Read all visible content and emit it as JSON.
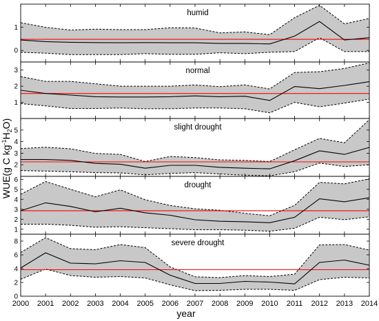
{
  "chart_data": {
    "type": "line",
    "xlabel": "year",
    "ylabel": "WUE(g C kg-1H2O)",
    "ylabel_parts": {
      "main": "WUE(g C kg",
      "sup": "-1",
      "mid": "H",
      "sub": "2",
      "end": "O)"
    },
    "x": [
      2000,
      2001,
      2002,
      2003,
      2004,
      2005,
      2006,
      2007,
      2008,
      2009,
      2010,
      2011,
      2012,
      2013,
      2014
    ],
    "x_tick_labels": [
      "2000",
      "2001",
      "2002",
      "2003",
      "2004",
      "2005",
      "2006",
      "2007",
      "2008",
      "2009",
      "2010",
      "2011",
      "2012",
      "2013",
      "2014"
    ],
    "grid": false,
    "panels": [
      {
        "title": "humid",
        "ylim": [
          -0.5,
          2.0
        ],
        "yticks": [
          0,
          1
        ],
        "mean": [
          0.45,
          0.38,
          0.35,
          0.34,
          0.33,
          0.34,
          0.33,
          0.33,
          0.3,
          0.3,
          0.28,
          0.62,
          1.25,
          0.45,
          0.55
        ],
        "upper": [
          1.2,
          1.0,
          0.88,
          0.92,
          0.9,
          0.9,
          0.98,
          0.97,
          0.76,
          0.8,
          0.68,
          1.42,
          1.95,
          1.15,
          1.38
        ],
        "lower": [
          -0.08,
          -0.12,
          -0.18,
          -0.18,
          -0.18,
          -0.14,
          -0.17,
          -0.17,
          -0.1,
          -0.14,
          -0.08,
          -0.05,
          0.55,
          -0.05,
          -0.05
        ],
        "reference": 0.48
      },
      {
        "title": "normal",
        "ylim": [
          0.0,
          3.5
        ],
        "yticks": [
          1,
          2,
          3
        ],
        "mean": [
          1.75,
          1.55,
          1.45,
          1.35,
          1.33,
          1.33,
          1.35,
          1.4,
          1.35,
          1.38,
          1.12,
          1.98,
          1.85,
          2.05,
          2.28
        ],
        "upper": [
          2.6,
          2.3,
          2.3,
          2.15,
          2.0,
          2.0,
          2.0,
          2.08,
          1.97,
          2.08,
          1.83,
          2.85,
          2.9,
          3.1,
          3.45
        ],
        "lower": [
          0.92,
          0.78,
          0.62,
          0.62,
          0.65,
          0.6,
          0.6,
          0.65,
          0.65,
          0.6,
          0.35,
          1.0,
          0.72,
          0.95,
          1.2
        ],
        "reference": 1.55
      },
      {
        "title": "slight drought",
        "ylim": [
          1.0,
          6.0
        ],
        "yticks": [
          2,
          3,
          4,
          5
        ],
        "mean": [
          2.45,
          2.45,
          2.38,
          2.12,
          2.05,
          1.7,
          1.95,
          1.95,
          1.78,
          1.7,
          1.65,
          2.35,
          3.2,
          2.9,
          3.5
        ],
        "upper": [
          3.4,
          3.52,
          3.38,
          2.98,
          2.9,
          2.28,
          2.72,
          2.62,
          2.42,
          2.38,
          2.28,
          3.3,
          4.28,
          3.9,
          5.9
        ],
        "lower": [
          1.5,
          1.45,
          1.4,
          1.32,
          1.3,
          1.13,
          1.25,
          1.32,
          1.2,
          1.1,
          1.05,
          1.4,
          2.15,
          1.85,
          2.0
        ],
        "reference": 2.25
      },
      {
        "title": "drought",
        "ylim": [
          0.5,
          6.3
        ],
        "yticks": [
          1,
          2,
          3,
          4,
          5,
          6
        ],
        "mean": [
          2.85,
          3.65,
          3.28,
          2.75,
          3.1,
          2.65,
          2.4,
          1.95,
          1.8,
          1.75,
          1.65,
          2.2,
          4.05,
          3.75,
          4.15
        ],
        "upper": [
          4.5,
          5.78,
          5.0,
          4.25,
          4.95,
          3.95,
          3.38,
          3.05,
          2.9,
          2.6,
          2.35,
          3.4,
          5.7,
          5.55,
          6.05
        ],
        "lower": [
          1.5,
          1.5,
          1.4,
          1.2,
          1.25,
          1.15,
          1.05,
          0.95,
          0.95,
          0.9,
          0.8,
          1.1,
          2.2,
          1.95,
          2.25
        ],
        "reference": 2.85
      },
      {
        "title": "severe drought",
        "ylim": [
          0.0,
          9.0
        ],
        "yticks": [
          0,
          2,
          4,
          6,
          8
        ],
        "mean": [
          4.1,
          6.3,
          4.8,
          4.7,
          5.15,
          4.9,
          3.05,
          1.85,
          1.85,
          2.15,
          2.05,
          1.8,
          4.9,
          5.25,
          4.5
        ],
        "upper": [
          6.35,
          8.5,
          6.9,
          6.75,
          7.5,
          7.05,
          4.25,
          2.82,
          2.7,
          3.0,
          2.85,
          3.2,
          7.45,
          7.5,
          6.7
        ],
        "lower": [
          2.45,
          3.95,
          3.0,
          2.75,
          2.85,
          2.65,
          1.65,
          0.8,
          0.85,
          1.0,
          1.0,
          0.85,
          2.4,
          2.75,
          2.65
        ],
        "reference": 3.85
      }
    ],
    "colors": {
      "band_fill": "#c8c8c8",
      "band_edge": "#000000",
      "mean_line": "#000000",
      "reference_line": "#ff0000"
    }
  }
}
